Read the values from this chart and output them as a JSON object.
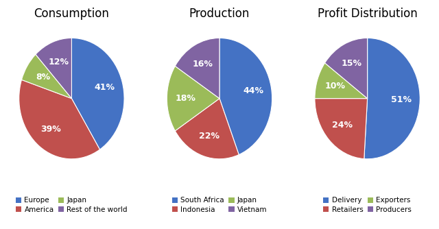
{
  "charts": [
    {
      "title": "Consumption",
      "labels": [
        "Europe",
        "America",
        "Japan",
        "Rest of the world"
      ],
      "values": [
        41,
        39,
        8,
        12
      ],
      "colors": [
        "#4472C4",
        "#C0504D",
        "#9BBB59",
        "#8064A2"
      ],
      "startangle": 90
    },
    {
      "title": "Production",
      "labels": [
        "South Africa",
        "Indonesia",
        "Japan",
        "Vietnam"
      ],
      "values": [
        44,
        22,
        18,
        16
      ],
      "colors": [
        "#4472C4",
        "#C0504D",
        "#9BBB59",
        "#8064A2"
      ],
      "startangle": 90
    },
    {
      "title": "Profit Distribution",
      "labels": [
        "Delivery",
        "Retailers",
        "Exporters",
        "Producers"
      ],
      "values": [
        51,
        24,
        10,
        15
      ],
      "colors": [
        "#4472C4",
        "#C0504D",
        "#9BBB59",
        "#8064A2"
      ],
      "startangle": 90
    }
  ],
  "legend_defs": [
    [
      [
        "Europe",
        "#4472C4"
      ],
      [
        "America",
        "#C0504D"
      ],
      [
        "Japan",
        "#9BBB59"
      ],
      [
        "Rest of the world",
        "#8064A2"
      ]
    ],
    [
      [
        "South Africa",
        "#4472C4"
      ],
      [
        "Indonesia",
        "#C0504D"
      ],
      [
        "Japan",
        "#9BBB59"
      ],
      [
        "Vietnam",
        "#8064A2"
      ]
    ],
    [
      [
        "Delivery",
        "#4472C4"
      ],
      [
        "Retailers",
        "#C0504D"
      ],
      [
        "Exporters",
        "#9BBB59"
      ],
      [
        "Producers",
        "#8064A2"
      ]
    ]
  ],
  "background_color": "#FFFFFF",
  "title_fontsize": 12,
  "label_fontsize": 9,
  "legend_fontsize": 7.5
}
